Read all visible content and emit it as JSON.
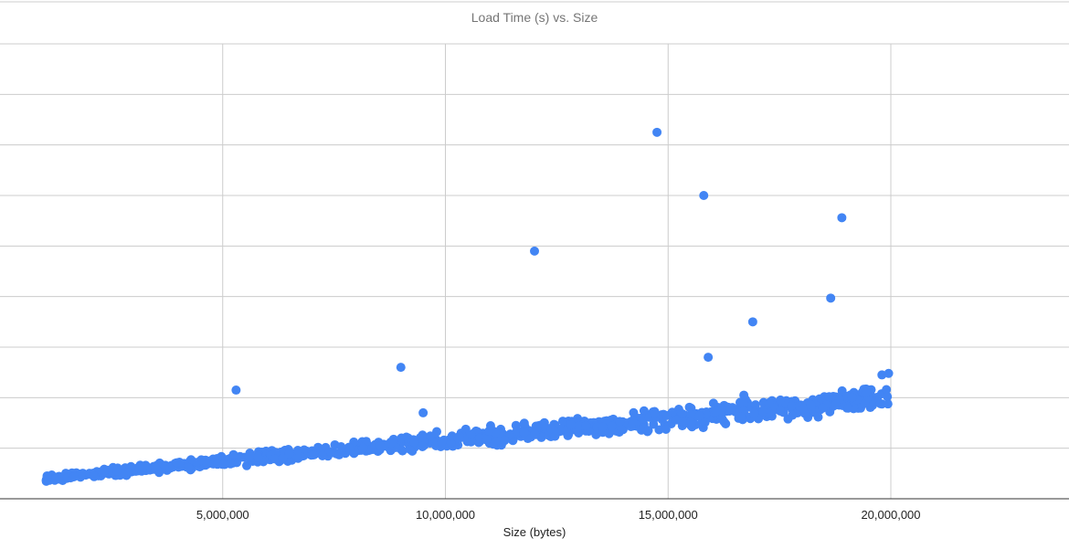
{
  "chart_data": {
    "type": "scatter",
    "title": "Load Time (s) vs. Size",
    "xlabel": "Size (bytes)",
    "ylabel": "",
    "xlim": [
      0,
      24000000
    ],
    "ylim": [
      0,
      0.9
    ],
    "x_ticks": [
      5000000,
      10000000,
      15000000,
      20000000
    ],
    "x_tick_labels": [
      "5,000,000",
      "10,000,000",
      "15,000,000",
      "20,000,000"
    ],
    "y_gridlines": [
      0.1,
      0.2,
      0.3,
      0.4,
      0.5,
      0.6,
      0.7,
      0.8
    ],
    "grid": true,
    "legend": "none",
    "point_color": "#4285f4",
    "main_cluster": {
      "x_range": [
        1000000,
        20000000
      ],
      "trend_start": [
        1000000,
        0.04
      ],
      "trend_end": [
        20000000,
        0.2
      ],
      "spread_min": 0.02,
      "spread_max": 0.07,
      "count": 900
    },
    "points": [
      [
        5300000,
        0.215
      ],
      [
        9000000,
        0.26
      ],
      [
        12000000,
        0.49
      ],
      [
        14750000,
        0.725
      ],
      [
        15800000,
        0.6
      ],
      [
        15900000,
        0.28
      ],
      [
        16900000,
        0.35
      ],
      [
        18650000,
        0.397
      ],
      [
        18900000,
        0.556
      ],
      [
        16700000,
        0.205
      ],
      [
        9500000,
        0.17
      ],
      [
        19800000,
        0.245
      ],
      [
        19950000,
        0.248
      ]
    ]
  }
}
